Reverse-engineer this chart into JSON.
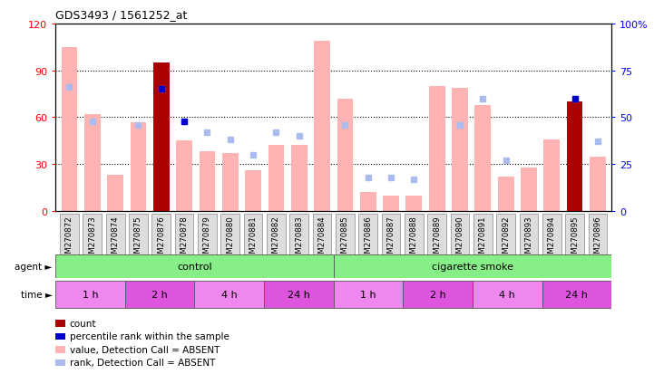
{
  "title": "GDS3493 / 1561252_at",
  "samples": [
    "GSM270872",
    "GSM270873",
    "GSM270874",
    "GSM270875",
    "GSM270876",
    "GSM270878",
    "GSM270879",
    "GSM270880",
    "GSM270881",
    "GSM270882",
    "GSM270883",
    "GSM270884",
    "GSM270885",
    "GSM270886",
    "GSM270887",
    "GSM270888",
    "GSM270889",
    "GSM270890",
    "GSM270891",
    "GSM270892",
    "GSM270893",
    "GSM270894",
    "GSM270895",
    "GSM270896"
  ],
  "value_bars": [
    105,
    62,
    23,
    57,
    95,
    45,
    38,
    37,
    26,
    42,
    42,
    109,
    72,
    12,
    10,
    10,
    80,
    79,
    68,
    22,
    28,
    46,
    34,
    35
  ],
  "count_bars": [
    null,
    null,
    null,
    null,
    95,
    null,
    null,
    null,
    null,
    null,
    null,
    null,
    null,
    null,
    null,
    null,
    null,
    null,
    null,
    null,
    null,
    null,
    70,
    null
  ],
  "rank_markers": [
    66,
    48,
    null,
    46,
    65,
    48,
    42,
    38,
    30,
    42,
    40,
    null,
    46,
    18,
    18,
    17,
    null,
    46,
    60,
    27,
    null,
    null,
    60,
    37
  ],
  "percentile_markers": [
    null,
    null,
    null,
    null,
    65,
    48,
    null,
    null,
    null,
    null,
    null,
    null,
    null,
    null,
    null,
    null,
    null,
    null,
    null,
    null,
    null,
    null,
    60,
    null
  ],
  "value_color": "#FFB3B3",
  "count_color": "#AA0000",
  "rank_color": "#AABBEE",
  "percentile_color": "#0000CC",
  "ylim_left": [
    0,
    120
  ],
  "ylim_right": [
    0,
    100
  ],
  "yticks_left": [
    0,
    30,
    60,
    90,
    120
  ],
  "yticks_right": [
    0,
    25,
    50,
    75,
    100
  ],
  "ytick_labels_right": [
    "0",
    "25",
    "50",
    "75",
    "100%"
  ],
  "ytick_labels_left": [
    "0",
    "30",
    "60",
    "90",
    "120"
  ],
  "time_labels": [
    "1 h",
    "2 h",
    "4 h",
    "24 h",
    "1 h",
    "2 h",
    "4 h",
    "24 h"
  ],
  "time_starts": [
    0,
    3,
    6,
    9,
    12,
    15,
    18,
    21
  ],
  "time_ends": [
    3,
    6,
    9,
    12,
    15,
    18,
    21,
    24
  ],
  "time_colors": [
    "#EE88EE",
    "#DD55DD",
    "#EE88EE",
    "#DD55DD",
    "#EE88EE",
    "#DD55DD",
    "#EE88EE",
    "#DD55DD"
  ],
  "agent_labels": [
    "control",
    "cigarette smoke"
  ],
  "agent_starts": [
    0,
    12
  ],
  "agent_ends": [
    12,
    24
  ],
  "agent_color": "#88EE88",
  "legend_items": [
    {
      "label": "count",
      "color": "#AA0000"
    },
    {
      "label": "percentile rank within the sample",
      "color": "#0000CC"
    },
    {
      "label": "value, Detection Call = ABSENT",
      "color": "#FFB3B3"
    },
    {
      "label": "rank, Detection Call = ABSENT",
      "color": "#AABBEE"
    }
  ]
}
